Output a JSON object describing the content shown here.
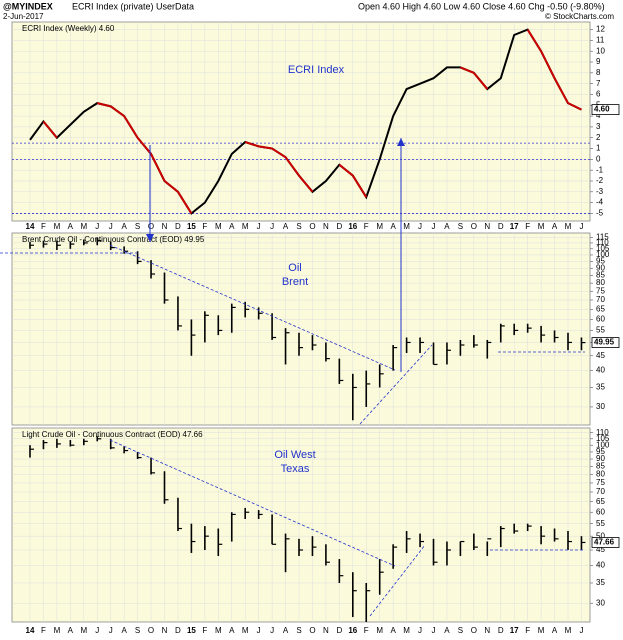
{
  "header": {
    "symbol": "@MYINDEX",
    "description": "ECRI Index (private) UserData",
    "date": "2-Jun-2017",
    "quote": "Open 4.60 High 4.60 Low 4.60 Close 4.60 Chg -0.50 (-9.80%)",
    "credit": "© StockCharts.com"
  },
  "chart_data": [
    {
      "type": "line",
      "annotation": [
        "ECRI Index"
      ],
      "categories": [
        "14",
        "F",
        "M",
        "A",
        "M",
        "J",
        "J",
        "A",
        "S",
        "O",
        "N",
        "D",
        "15",
        "F",
        "M",
        "A",
        "M",
        "J",
        "J",
        "A",
        "S",
        "O",
        "N",
        "D",
        "16",
        "F",
        "M",
        "A",
        "M",
        "J",
        "J",
        "A",
        "S",
        "O",
        "N",
        "D",
        "17",
        "F",
        "M",
        "A",
        "M",
        "J"
      ],
      "series": [
        {
          "name": "ECRI Index (Weekly) 4.60",
          "color": "#000000",
          "down_color": "#cc0000",
          "values": [
            1.8,
            3.5,
            2.0,
            3.2,
            4.4,
            5.2,
            4.9,
            4.0,
            2.0,
            0.5,
            -2,
            -3,
            -5,
            -4,
            -2,
            0.5,
            1.6,
            1.2,
            1.0,
            0.2,
            -1.5,
            -3,
            -2,
            -0.5,
            -1.5,
            -3.5,
            0,
            4,
            6.5,
            7,
            7.5,
            8.5,
            8.5,
            8,
            6.5,
            7.5,
            11.5,
            12,
            10,
            7.5,
            5.2,
            4.6
          ],
          "value_labels": [
            null,
            null,
            null,
            null,
            null,
            null,
            null,
            null,
            null,
            null,
            null,
            null,
            null,
            null,
            null,
            null,
            null,
            null,
            null,
            null,
            null,
            null,
            null,
            null,
            null,
            null,
            null,
            null,
            null,
            null,
            null,
            null,
            null,
            null,
            null,
            null,
            null,
            null,
            null,
            null,
            null,
            "4.60"
          ]
        }
      ],
      "reference_lines": [
        1.5,
        0,
        -5
      ],
      "reference_color": "#3333cc",
      "ylim": [
        -5.7,
        12.7
      ],
      "yticks": [
        -5,
        -4,
        -3,
        -2,
        -1,
        0,
        1,
        2,
        3,
        4,
        5,
        6,
        7,
        8,
        9,
        10,
        11,
        12
      ],
      "grid": true
    },
    {
      "type": "hlc",
      "annotation": [
        "Oil",
        "Brent"
      ],
      "log_scale": true,
      "series": [
        {
          "name": "Brent Crude Oil - Continuous Contract (EOD) 49.95",
          "color": "#000000",
          "high": [
            111,
            112,
            112,
            111,
            113,
            115,
            111,
            107,
            103,
            96,
            87,
            72,
            60,
            64,
            62,
            68,
            69,
            66,
            63,
            56,
            54,
            53,
            50,
            44,
            39,
            40,
            42,
            49,
            52,
            52,
            50,
            50,
            51,
            53,
            51,
            58,
            58,
            58,
            57,
            55,
            54,
            52
          ],
          "low": [
            105,
            106,
            104,
            105,
            108,
            108,
            104,
            101,
            93,
            83,
            68,
            55,
            45,
            50,
            53,
            54,
            61,
            60,
            51,
            42,
            45,
            47,
            43,
            36,
            27,
            30,
            35,
            40,
            46,
            46,
            42,
            42,
            45,
            48,
            44,
            50,
            53,
            54,
            50,
            50,
            47,
            47
          ],
          "values": [
            108,
            109,
            108,
            109,
            110,
            112,
            106,
            103,
            95,
            86,
            70,
            57,
            53,
            62,
            55,
            66,
            65,
            63,
            52,
            54,
            48,
            49,
            44,
            37,
            35,
            36,
            39,
            48,
            50,
            50,
            42,
            47,
            49,
            49,
            50,
            57,
            55,
            56,
            53,
            52,
            50,
            49.95
          ]
        }
      ],
      "ylim": [
        26,
        119
      ],
      "yticks": [
        30,
        35,
        40,
        45,
        50,
        55,
        60,
        65,
        70,
        75,
        80,
        85,
        90,
        95,
        100,
        105,
        110,
        115
      ],
      "grid": true
    },
    {
      "type": "hlc",
      "annotation": [
        "Oil West",
        "Texas"
      ],
      "log_scale": true,
      "categories": [
        "14",
        "F",
        "M",
        "A",
        "M",
        "J",
        "J",
        "A",
        "S",
        "O",
        "N",
        "D",
        "15",
        "F",
        "M",
        "A",
        "M",
        "J",
        "J",
        "A",
        "S",
        "O",
        "N",
        "D",
        "16",
        "F",
        "M",
        "A",
        "M",
        "J",
        "J",
        "A",
        "S",
        "O",
        "N",
        "D",
        "17",
        "F",
        "M",
        "A",
        "M",
        "J"
      ],
      "series": [
        {
          "name": "Light Crude Oil - Continuous Contract (EOD) 47.66",
          "color": "#000000",
          "high": [
            100,
            104,
            105,
            104,
            105,
            107,
            105,
            99,
            95,
            91,
            82,
            67,
            55,
            54,
            53,
            60,
            62,
            61,
            59,
            51,
            49,
            50,
            47,
            42,
            38,
            35,
            42,
            47,
            52,
            51,
            49,
            48,
            48,
            51,
            48,
            54,
            55,
            55,
            54,
            53,
            52,
            50
          ],
          "low": [
            91,
            97,
            98,
            99,
            100,
            103,
            97,
            94,
            90,
            80,
            64,
            52,
            44,
            45,
            43,
            48,
            57,
            57,
            47,
            38,
            43,
            43,
            40,
            35,
            27,
            26,
            32,
            39,
            44,
            46,
            40,
            40,
            43,
            45,
            43,
            46,
            51,
            52,
            47,
            48,
            45,
            45
          ],
          "values": [
            97,
            102,
            101,
            100,
            103,
            105,
            98,
            96,
            91,
            81,
            66,
            53,
            48,
            50,
            47,
            59,
            60,
            59,
            47,
            49,
            45,
            46,
            41,
            37,
            33,
            33,
            38,
            46,
            49,
            48,
            41,
            45,
            48,
            46,
            49,
            53,
            52,
            54,
            50,
            49,
            48,
            47.66
          ]
        }
      ],
      "ylim": [
        26,
        114
      ],
      "yticks": [
        30,
        35,
        40,
        45,
        50,
        55,
        60,
        65,
        70,
        75,
        80,
        85,
        90,
        95,
        100,
        105,
        110
      ],
      "grid": true
    }
  ]
}
